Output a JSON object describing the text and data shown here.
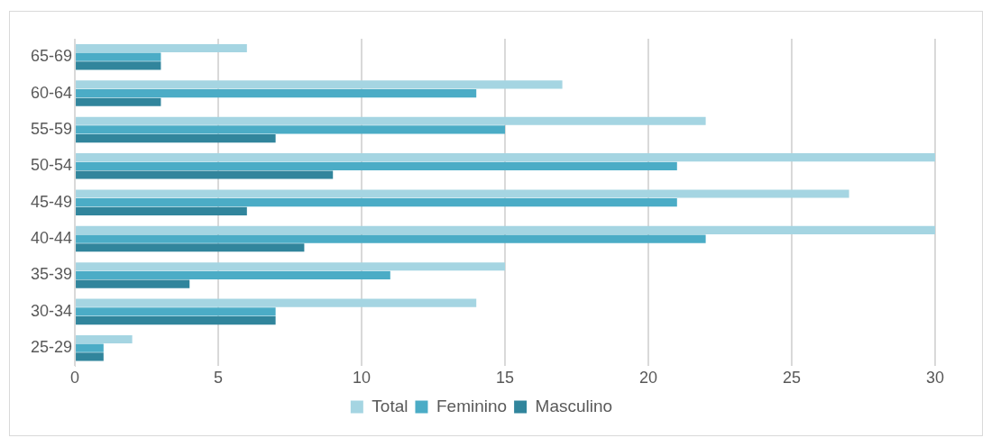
{
  "chart_data": {
    "type": "bar",
    "orientation": "horizontal",
    "categories": [
      "65-69",
      "60-64",
      "55-59",
      "50-54",
      "45-49",
      "40-44",
      "35-39",
      "30-34",
      "25-29"
    ],
    "series": [
      {
        "name": "Total",
        "color": "#a5d5e2",
        "values": [
          6,
          17,
          22,
          30,
          27,
          30,
          15,
          14,
          2
        ]
      },
      {
        "name": "Feminino",
        "color": "#4bacc6",
        "values": [
          3,
          14,
          15,
          21,
          21,
          22,
          11,
          7,
          1
        ]
      },
      {
        "name": "Masculino",
        "color": "#31859c",
        "values": [
          3,
          3,
          7,
          9,
          6,
          8,
          4,
          7,
          1
        ]
      }
    ],
    "xlim": [
      0,
      30
    ],
    "xticks": [
      0,
      5,
      10,
      15,
      20,
      25,
      30
    ],
    "grid": "x",
    "legend": "bottom"
  }
}
